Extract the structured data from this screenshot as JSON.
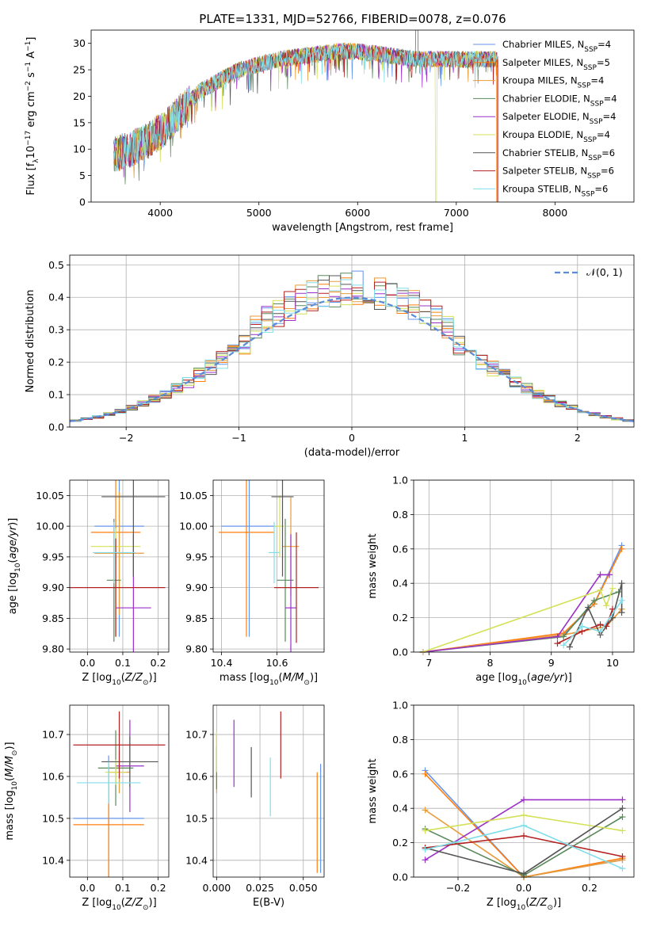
{
  "figure_title": "PLATE=1331, MJD=52766, FIBERID=0078, z=0.076",
  "series_colors": [
    "#6495ed",
    "#ff7f0e",
    "#e89b3a",
    "#5a8a5a",
    "#9b30c8",
    "#d4e157",
    "#555555",
    "#b22222",
    "#80deea"
  ],
  "legend": [
    {
      "label": "Chabrier MILES, N",
      "sub": "SSP",
      "suffix": "=4"
    },
    {
      "label": "Salpeter MILES, N",
      "sub": "SSP",
      "suffix": "=5"
    },
    {
      "label": "Kroupa MILES, N",
      "sub": "SSP",
      "suffix": "=4"
    },
    {
      "label": "Chabrier ELODIE, N",
      "sub": "SSP",
      "suffix": "=4"
    },
    {
      "label": "Salpeter ELODIE, N",
      "sub": "SSP",
      "suffix": "=4"
    },
    {
      "label": "Kroupa ELODIE, N",
      "sub": "SSP",
      "suffix": "=4"
    },
    {
      "label": "Chabrier STELIB, N",
      "sub": "SSP",
      "suffix": "=6"
    },
    {
      "label": "Salpeter STELIB, N",
      "sub": "SSP",
      "suffix": "=6"
    },
    {
      "label": "Kroupa STELIB, N",
      "sub": "SSP",
      "suffix": "=6"
    }
  ],
  "chart_data": [
    {
      "id": "spectrum",
      "type": "line",
      "xlabel": "wavelength [Angstrom, rest frame]",
      "ylabel": "Flux [f_λ10^-17 erg cm^-2 s^-1 A^-1]",
      "xlim": [
        3300,
        8800
      ],
      "ylim": [
        0,
        32.5
      ],
      "xticks": [
        4000,
        5000,
        6000,
        7000,
        8000
      ],
      "yticks": [
        0,
        5,
        10,
        15,
        20,
        25,
        30
      ],
      "grid": false,
      "legend_position": "top-right",
      "x_range_data": [
        3530,
        7420
      ],
      "trend": {
        "x": [
          3530,
          3700,
          3900,
          4050,
          4200,
          4400,
          4600,
          4800,
          5000,
          5200,
          5400,
          5600,
          5800,
          6000,
          6200,
          6400,
          6600,
          6800,
          7000,
          7200,
          7420
        ],
        "y": [
          9,
          10,
          12,
          14,
          17,
          21,
          23,
          25,
          26,
          27,
          27.5,
          28,
          28.5,
          28.5,
          28,
          27.5,
          27,
          27,
          27,
          27,
          27
        ]
      }
    },
    {
      "id": "residuals",
      "type": "histogram",
      "xlabel": "(data-model)/error",
      "ylabel": "Normed distribution",
      "xlim": [
        -2.5,
        2.5
      ],
      "ylim": [
        0,
        0.53
      ],
      "xticks": [
        -2,
        -1,
        0,
        1,
        2
      ],
      "yticks": [
        0.0,
        0.1,
        0.2,
        0.3,
        0.4,
        0.5
      ],
      "grid": true,
      "bin_width": 0.1,
      "legend": [
        {
          "label": "N(0,1)",
          "color": "#5b8bd6",
          "style": "dashed"
        }
      ]
    },
    {
      "id": "age-vs-Z",
      "type": "errorbar",
      "xlabel": "Z [log10(Z/Z_sun)]",
      "ylabel": "age [log10(age/yr)]",
      "xlim": [
        -0.05,
        0.23
      ],
      "ylim": [
        9.795,
        10.075
      ],
      "xticks": [
        0.0,
        0.1,
        0.2
      ],
      "yticks": [
        9.8,
        9.85,
        9.9,
        9.95,
        10.0,
        10.05
      ],
      "grid": true,
      "points": [
        {
          "x": 0.09,
          "y": 10.0,
          "xerr": 0.07,
          "yerr": 0.18
        },
        {
          "x": 0.08,
          "y": 9.99,
          "xerr": 0.07,
          "yerr": 0.17
        },
        {
          "x": 0.09,
          "y": 9.956,
          "xerr": 0.07,
          "yerr": 0.1
        },
        {
          "x": 0.075,
          "y": 9.912,
          "xerr": 0.02,
          "yerr": 0.1
        },
        {
          "x": 0.13,
          "y": 9.867,
          "xerr": 0.05,
          "yerr": 0.12
        },
        {
          "x": 0.08,
          "y": 9.967,
          "xerr": 0.07,
          "yerr": 0.03
        },
        {
          "x": 0.13,
          "y": 10.048,
          "xerr": 0.09,
          "yerr": 0.13
        },
        {
          "x": 0.08,
          "y": 9.9,
          "xerr": 0.14,
          "yerr": 0.08
        },
        {
          "x": 0.075,
          "y": 9.957,
          "xerr": 0.06,
          "yerr": 0.05
        }
      ]
    },
    {
      "id": "age-vs-mass",
      "type": "errorbar",
      "xlabel": "mass [log10(M/M_sun)]",
      "ylabel": "",
      "xlim": [
        10.37,
        10.77
      ],
      "ylim": [
        9.795,
        10.075
      ],
      "xticks": [
        10.4,
        10.6
      ],
      "yticks": [
        9.8,
        9.85,
        9.9,
        9.95,
        10.0,
        10.05
      ],
      "grid": true,
      "points": [
        {
          "x": 10.5,
          "y": 10.0,
          "xerr": 0.1,
          "yerr": 0.18
        },
        {
          "x": 10.49,
          "y": 9.99,
          "xerr": 0.1,
          "yerr": 0.17
        },
        {
          "x": 10.65,
          "y": 9.967,
          "xerr": 0.03,
          "yerr": 0.08
        },
        {
          "x": 10.63,
          "y": 9.912,
          "xerr": 0.03,
          "yerr": 0.1
        },
        {
          "x": 10.65,
          "y": 9.867,
          "xerr": 0.02,
          "yerr": 0.12
        },
        {
          "x": 10.61,
          "y": 10.0,
          "xerr": 0.02,
          "yerr": 0.05
        },
        {
          "x": 10.62,
          "y": 10.048,
          "xerr": 0.04,
          "yerr": 0.13
        },
        {
          "x": 10.67,
          "y": 9.9,
          "xerr": 0.08,
          "yerr": 0.09
        },
        {
          "x": 10.59,
          "y": 9.957,
          "xerr": 0.02,
          "yerr": 0.05
        }
      ]
    },
    {
      "id": "weight-vs-age",
      "type": "line",
      "xlabel": "age [log10(age/yr)]",
      "ylabel": "mass weight",
      "xlim": [
        6.75,
        10.35
      ],
      "ylim": [
        0,
        1
      ],
      "xticks": [
        7,
        8,
        9,
        10
      ],
      "yticks": [
        0.0,
        0.2,
        0.4,
        0.6,
        0.8,
        1.0
      ],
      "grid": true,
      "series": [
        {
          "x": [
            6.9,
            9.2,
            9.7,
            10.15
          ],
          "y": [
            0.0,
            0.1,
            0.28,
            0.62
          ]
        },
        {
          "x": [
            6.9,
            9.2,
            9.7,
            10.15
          ],
          "y": [
            0.0,
            0.11,
            0.28,
            0.6
          ]
        },
        {
          "x": [
            6.9,
            9.2,
            9.9,
            10.15
          ],
          "y": [
            0.0,
            0.1,
            0.15,
            0.25
          ]
        },
        {
          "x": [
            6.9,
            9.2,
            9.7,
            10.1
          ],
          "y": [
            0.0,
            0.09,
            0.3,
            0.35
          ]
        },
        {
          "x": [
            6.9,
            9.1,
            9.8,
            9.95
          ],
          "y": [
            0.0,
            0.09,
            0.45,
            0.45
          ]
        },
        {
          "x": [
            6.9,
            9.8,
            9.9,
            10.0
          ],
          "y": [
            0.0,
            0.36,
            0.27,
            0.37
          ]
        },
        {
          "x": [
            9.3,
            9.6,
            9.8,
            10.0,
            10.15,
            10.15
          ],
          "y": [
            0.03,
            0.26,
            0.1,
            0.2,
            0.4,
            0.23
          ]
        },
        {
          "x": [
            9.1,
            9.5,
            9.8,
            9.9,
            10.0
          ],
          "y": [
            0.05,
            0.12,
            0.16,
            0.15,
            0.25
          ]
        },
        {
          "x": [
            9.2,
            9.5,
            9.8,
            10.15
          ],
          "y": [
            0.04,
            0.15,
            0.12,
            0.3
          ]
        }
      ]
    },
    {
      "id": "mass-vs-Z",
      "type": "errorbar",
      "xlabel": "Z [log10(Z/Z_sun)]",
      "ylabel": "mass [log10(M/M_sun)]",
      "xlim": [
        -0.05,
        0.23
      ],
      "ylim": [
        10.36,
        10.77
      ],
      "xticks": [
        0.0,
        0.1,
        0.2
      ],
      "yticks": [
        10.4,
        10.5,
        10.6,
        10.7
      ],
      "grid": true,
      "points": [
        {
          "x": 0.06,
          "y": 10.5,
          "xerr": 0.1,
          "yerr": 0.15
        },
        {
          "x": 0.06,
          "y": 10.485,
          "xerr": 0.1,
          "yerr": 0.14
        },
        {
          "x": 0.09,
          "y": 10.61,
          "xerr": 0.03,
          "yerr": 0.05
        },
        {
          "x": 0.08,
          "y": 10.62,
          "xerr": 0.05,
          "yerr": 0.09
        },
        {
          "x": 0.12,
          "y": 10.625,
          "xerr": 0.04,
          "yerr": 0.11
        },
        {
          "x": 0.08,
          "y": 10.61,
          "xerr": 0.03,
          "yerr": 0.03
        },
        {
          "x": 0.12,
          "y": 10.635,
          "xerr": 0.08,
          "yerr": 0.06
        },
        {
          "x": 0.09,
          "y": 10.675,
          "xerr": 0.13,
          "yerr": 0.08
        },
        {
          "x": 0.06,
          "y": 10.585,
          "xerr": 0.09,
          "yerr": 0.05
        }
      ]
    },
    {
      "id": "mass-vs-EBV",
      "type": "errorbar",
      "xlabel": "E(B-V)",
      "ylabel": "",
      "xlim": [
        -0.002,
        0.062
      ],
      "ylim": [
        10.36,
        10.77
      ],
      "xticks": [
        0.0,
        0.025,
        0.05
      ],
      "yticks": [
        10.4,
        10.5,
        10.6,
        10.7
      ],
      "grid": true,
      "points": [
        {
          "x": 0.06,
          "y": 10.5,
          "xerr": 0,
          "yerr": 0.13
        },
        {
          "x": 0.058,
          "y": 10.49,
          "xerr": 0,
          "yerr": 0.12
        },
        {
          "x": 0.0,
          "y": 10.63,
          "xerr": 0,
          "yerr": 0.07
        },
        {
          "x": 0.0,
          "y": 10.62,
          "xerr": 0,
          "yerr": 0.05
        },
        {
          "x": 0.01,
          "y": 10.655,
          "xerr": 0,
          "yerr": 0.08
        },
        {
          "x": 0.0,
          "y": 10.66,
          "xerr": 0,
          "yerr": 0.05
        },
        {
          "x": 0.02,
          "y": 10.61,
          "xerr": 0,
          "yerr": 0.06
        },
        {
          "x": 0.037,
          "y": 10.675,
          "xerr": 0,
          "yerr": 0.08
        },
        {
          "x": 0.031,
          "y": 10.575,
          "xerr": 0,
          "yerr": 0.07
        }
      ]
    },
    {
      "id": "weight-vs-Z",
      "type": "line",
      "xlabel": "Z [log10(Z/Z_sun)]",
      "ylabel": "mass weight",
      "xlim": [
        -0.335,
        0.335
      ],
      "ylim": [
        0,
        1
      ],
      "xticks": [
        -0.2,
        0.0,
        0.2
      ],
      "yticks": [
        0.0,
        0.2,
        0.4,
        0.6,
        0.8,
        1.0
      ],
      "grid": true,
      "series": [
        {
          "x": [
            -0.3,
            0.0,
            0.3
          ],
          "y": [
            0.62,
            0.0,
            0.1
          ]
        },
        {
          "x": [
            -0.3,
            0.0,
            0.3
          ],
          "y": [
            0.6,
            0.0,
            0.11
          ]
        },
        {
          "x": [
            -0.3,
            0.0,
            0.3
          ],
          "y": [
            0.39,
            0.0,
            0.1
          ]
        },
        {
          "x": [
            -0.3,
            0.0,
            0.3
          ],
          "y": [
            0.28,
            0.01,
            0.35
          ]
        },
        {
          "x": [
            -0.3,
            0.0,
            0.3
          ],
          "y": [
            0.1,
            0.45,
            0.45
          ]
        },
        {
          "x": [
            -0.3,
            0.0,
            0.3
          ],
          "y": [
            0.27,
            0.36,
            0.27
          ]
        },
        {
          "x": [
            -0.3,
            0.0,
            0.3
          ],
          "y": [
            0.17,
            0.02,
            0.4
          ]
        },
        {
          "x": [
            -0.3,
            0.0,
            0.3
          ],
          "y": [
            0.17,
            0.24,
            0.12
          ]
        },
        {
          "x": [
            -0.3,
            0.0,
            0.3
          ],
          "y": [
            0.16,
            0.3,
            0.05
          ]
        }
      ]
    }
  ]
}
